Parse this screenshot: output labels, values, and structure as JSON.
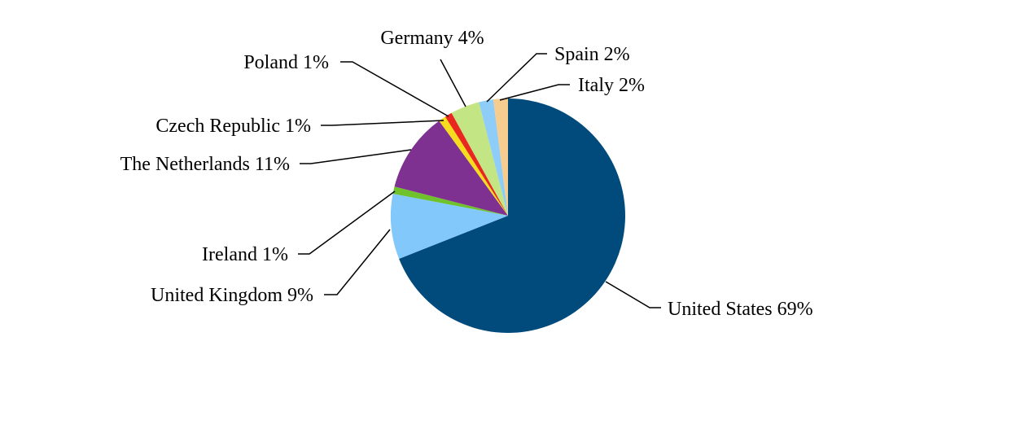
{
  "chart_data": {
    "type": "pie",
    "title": "",
    "start_angle_deg": 0,
    "direction": "clockwise",
    "slices": [
      {
        "name": "United States",
        "value": 69,
        "label": "United States 69%",
        "color": "#004A7C"
      },
      {
        "name": "United Kingdom",
        "value": 9,
        "label": "United Kingdom 9%",
        "color": "#82C8FA"
      },
      {
        "name": "Ireland",
        "value": 1,
        "label": "Ireland 1%",
        "color": "#6FC22C"
      },
      {
        "name": "The Netherlands",
        "value": 11,
        "label": "The Netherlands 11%",
        "color": "#7F3192"
      },
      {
        "name": "Czech Republic",
        "value": 1,
        "label": "Czech Republic 1%",
        "color": "#F7DC1E"
      },
      {
        "name": "Poland",
        "value": 1,
        "label": "Poland 1%",
        "color": "#E8281F"
      },
      {
        "name": "Germany",
        "value": 4,
        "label": "Germany 4%",
        "color": "#C3E583"
      },
      {
        "name": "Spain",
        "value": 2,
        "label": "Spain 2%",
        "color": "#8ECDF7"
      },
      {
        "name": "Italy",
        "value": 2,
        "label": "Italy 2%",
        "color": "#F6CD8E"
      }
    ]
  }
}
